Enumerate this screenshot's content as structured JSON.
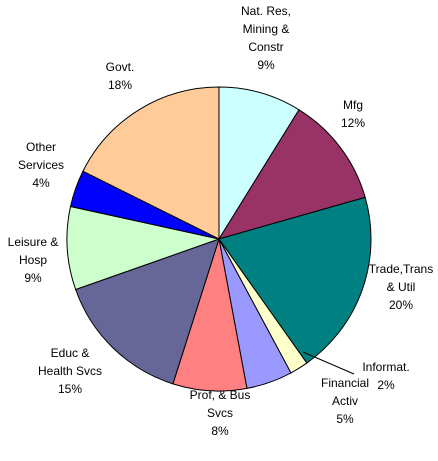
{
  "chart_data": {
    "type": "pie",
    "categories": [
      "Nat. Res,\nMining &\nConstr",
      "Mfg",
      "Trade,Trans\n& Util",
      "Informat.",
      "Financial\nActiv",
      "Prof, & Bus\nSvcs",
      "Educ &\nHealth Svcs",
      "Leisure &\nHosp",
      "Other\nServices",
      "Govt."
    ],
    "values": [
      9,
      12,
      20,
      2,
      5,
      8,
      15,
      9,
      4,
      18
    ],
    "value_labels": [
      "9%",
      "12%",
      "20%",
      "2%",
      "5%",
      "8%",
      "15%",
      "9%",
      "4%",
      "18%"
    ],
    "colors": [
      "#ccffff",
      "#993366",
      "#008080",
      "#ffffcc",
      "#9999ff",
      "#ff8080",
      "#666699",
      "#ccffcc",
      "#0000ff",
      "#ffcc99"
    ]
  }
}
